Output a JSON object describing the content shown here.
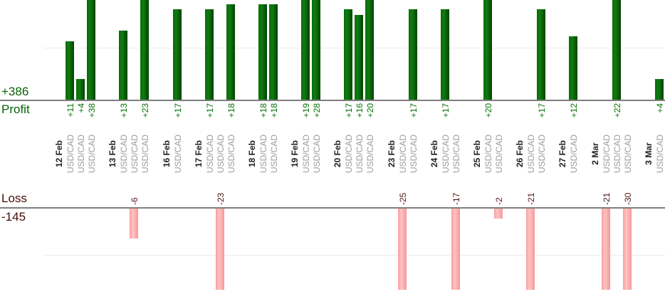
{
  "profit_panel": {
    "total_label": "+386",
    "axis_title": "Profit"
  },
  "loss_panel": {
    "axis_title": "Loss",
    "total_label": "-145"
  },
  "chart_data": {
    "type": "bar",
    "symbol": "USD/CAD",
    "layout": "dual panel: profit bars grow up from upper axis, loss bars hang below lower axis; one column per trade; all column labels rotated 90 degrees reading bottom-to-top; gridline at +10 on profit panel and -10 on loss panel; tall bars clipped at image edges",
    "profit_total": 386,
    "loss_total": -145,
    "profit_gridline_value": 10,
    "loss_gridline_value": -10,
    "groups": [
      {
        "date": "12 Feb",
        "trades": [
          11,
          4,
          38
        ]
      },
      {
        "date": "13 Feb",
        "trades": [
          13,
          -6,
          23
        ]
      },
      {
        "date": "16 Feb",
        "trades": [
          17
        ]
      },
      {
        "date": "17 Feb",
        "trades": [
          17,
          -23,
          18
        ]
      },
      {
        "date": "18 Feb",
        "trades": [
          18,
          18
        ]
      },
      {
        "date": "19 Feb",
        "trades": [
          19,
          28
        ]
      },
      {
        "date": "20 Feb",
        "trades": [
          17,
          16,
          20
        ]
      },
      {
        "date": "23 Feb",
        "trades": [
          -25,
          17
        ]
      },
      {
        "date": "24 Feb",
        "trades": [
          17,
          -17
        ]
      },
      {
        "date": "25 Feb",
        "trades": [
          20,
          -2
        ]
      },
      {
        "date": "26 Feb",
        "trades": [
          -21,
          17
        ]
      },
      {
        "date": "27 Feb",
        "trades": [
          12
        ]
      },
      {
        "date": "2 Mar",
        "trades": [
          -21,
          22,
          -30
        ]
      },
      {
        "date": "3 Mar",
        "trades": [
          4
        ]
      }
    ],
    "colors": {
      "profit_bar": "#0b6f0b",
      "profit_text": "#077107",
      "profit_panel_text": "#066106",
      "loss_bar": "#ffb3b3",
      "loss_text": "#4d1414",
      "loss_panel_text": "#470b0b",
      "date_text": "#222222",
      "symbol_text": "#9b9b9b",
      "axis_line": "#7e7e7e",
      "gridline": "#ebebeb"
    }
  }
}
